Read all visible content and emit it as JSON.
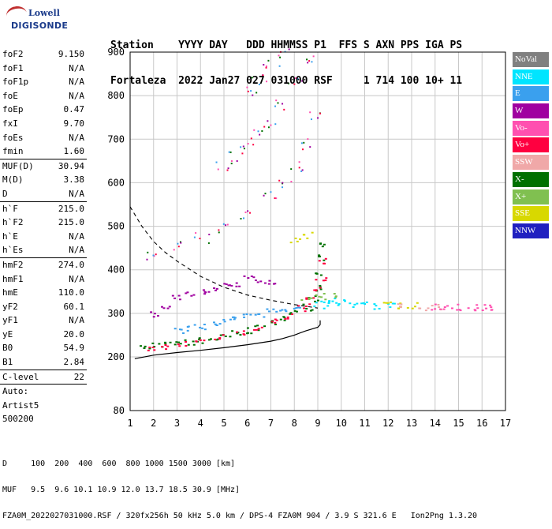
{
  "logo": {
    "line1": "Lowell",
    "line2": "DIGISONDE"
  },
  "header": {
    "line1": "Station    YYYY DAY   DDD HHMMSS P1  FFS S AXN PPS IGA PS",
    "line2": "Fortaleza  2022 Jan27 027 031000 RSF     1 714 100 10+ 11"
  },
  "params": {
    "group1": [
      {
        "k": "foF2",
        "v": "9.150"
      },
      {
        "k": "foF1",
        "v": "N/A"
      },
      {
        "k": "foF1p",
        "v": "N/A"
      },
      {
        "k": "foE",
        "v": "N/A"
      },
      {
        "k": "foEp",
        "v": "0.47"
      },
      {
        "k": "fxI",
        "v": "9.70"
      },
      {
        "k": "foEs",
        "v": "N/A"
      },
      {
        "k": "fmin",
        "v": "1.60"
      }
    ],
    "group2": [
      {
        "k": "MUF(D)",
        "v": "30.94"
      },
      {
        "k": "M(D)",
        "v": "3.38"
      },
      {
        "k": "D",
        "v": "N/A"
      }
    ],
    "group3": [
      {
        "k": "h`F",
        "v": "215.0"
      },
      {
        "k": "h`F2",
        "v": "215.0"
      },
      {
        "k": "h`E",
        "v": "N/A"
      },
      {
        "k": "h`Es",
        "v": "N/A"
      }
    ],
    "group4": [
      {
        "k": "hmF2",
        "v": "274.0"
      },
      {
        "k": "hmF1",
        "v": "N/A"
      },
      {
        "k": "hmE",
        "v": "110.0"
      },
      {
        "k": "yF2",
        "v": "60.1"
      },
      {
        "k": "yF1",
        "v": "N/A"
      },
      {
        "k": "yE",
        "v": "20.0"
      },
      {
        "k": "B0",
        "v": "54.9"
      },
      {
        "k": "B1",
        "v": "2.84"
      }
    ],
    "group5": [
      {
        "k": "C-level",
        "v": "22"
      }
    ],
    "auto": [
      "Auto:",
      "Artist5",
      "500200"
    ]
  },
  "legend": [
    {
      "label": "NoVal",
      "color": "#808080"
    },
    {
      "label": "NNE",
      "color": "#00e5ff"
    },
    {
      "label": "E",
      "color": "#3aa0ee"
    },
    {
      "label": "W",
      "color": "#a000a0"
    },
    {
      "label": "Vo-",
      "color": "#ff50b0"
    },
    {
      "label": "Vo+",
      "color": "#ff0040"
    },
    {
      "label": "SSW",
      "color": "#f0a8a8"
    },
    {
      "label": "X-",
      "color": "#007000"
    },
    {
      "label": "X+",
      "color": "#80c050"
    },
    {
      "label": "SSE",
      "color": "#d8d800"
    },
    {
      "label": "NNW",
      "color": "#2020c0"
    }
  ],
  "footer": {
    "line1": "D     100  200  400  600  800 1000 1500 3000 [km]",
    "line2": "MUF   9.5  9.6 10.1 10.9 12.0 13.7 18.5 30.9 [MHz]",
    "line3": "FZA0M_2022027031000.RSF / 320fx256h 50 kHz 5.0 km / DPS-4 FZA0M 904 / 3.9 S 321.6 E   Ion2Png 1.3.20"
  },
  "chart_data": {
    "type": "scatter",
    "title": "",
    "xlabel": "",
    "ylabel": "",
    "xlim": [
      1,
      17
    ],
    "ylim": [
      80,
      900
    ],
    "x_ticks": [
      1,
      2,
      3,
      4,
      5,
      6,
      7,
      8,
      9,
      10,
      11,
      12,
      13,
      14,
      15,
      16,
      17
    ],
    "y_ticks": [
      80,
      200,
      300,
      400,
      500,
      600,
      700,
      800,
      900
    ],
    "grid": true,
    "legend_position": "right",
    "series": [
      {
        "name": "X-",
        "color": "#007000",
        "points": [
          [
            1.6,
            222
          ],
          [
            2.0,
            226
          ],
          [
            2.5,
            228
          ],
          [
            3.0,
            232
          ],
          [
            3.5,
            236
          ],
          [
            4.0,
            240
          ],
          [
            4.5,
            244
          ],
          [
            5.0,
            250
          ],
          [
            5.5,
            256
          ],
          [
            6.0,
            262
          ],
          [
            6.5,
            270
          ],
          [
            7.0,
            278
          ],
          [
            7.5,
            288
          ],
          [
            8.0,
            300
          ],
          [
            8.5,
            315
          ],
          [
            8.8,
            335
          ],
          [
            9.0,
            360
          ],
          [
            9.1,
            390
          ],
          [
            9.2,
            430
          ],
          [
            9.25,
            460
          ]
        ]
      },
      {
        "name": "Vo+",
        "color": "#ff0040",
        "points": [
          [
            1.8,
            220
          ],
          [
            2.5,
            225
          ],
          [
            3.2,
            230
          ],
          [
            4.0,
            237
          ],
          [
            4.8,
            246
          ],
          [
            5.6,
            257
          ],
          [
            6.4,
            268
          ],
          [
            7.2,
            282
          ],
          [
            7.8,
            296
          ],
          [
            8.3,
            312
          ],
          [
            8.7,
            330
          ],
          [
            9.0,
            355
          ],
          [
            9.1,
            380
          ],
          [
            9.2,
            420
          ]
        ]
      },
      {
        "name": "E",
        "color": "#3aa0ee",
        "points": [
          [
            3.0,
            262
          ],
          [
            3.5,
            268
          ],
          [
            4.0,
            272
          ],
          [
            4.5,
            278
          ],
          [
            5.0,
            282
          ],
          [
            5.5,
            288
          ],
          [
            6.0,
            294
          ],
          [
            6.5,
            300
          ],
          [
            7.0,
            306
          ],
          [
            7.5,
            312
          ],
          [
            8.0,
            318
          ]
        ]
      },
      {
        "name": "NNE",
        "color": "#00e5ff",
        "points": [
          [
            9.0,
            320
          ],
          [
            9.3,
            325
          ],
          [
            9.6,
            330
          ],
          [
            10.0,
            325
          ],
          [
            10.5,
            322
          ],
          [
            11.0,
            320
          ],
          [
            11.5,
            318
          ],
          [
            12.0,
            318
          ]
        ]
      },
      {
        "name": "W",
        "color": "#a000a0",
        "points": [
          [
            2.0,
            300
          ],
          [
            2.5,
            320
          ],
          [
            3.0,
            340
          ],
          [
            3.5,
            345
          ],
          [
            4.0,
            350
          ],
          [
            4.5,
            355
          ],
          [
            5.0,
            365
          ],
          [
            5.5,
            370
          ],
          [
            6.0,
            380
          ],
          [
            6.5,
            375
          ],
          [
            7.0,
            370
          ]
        ]
      },
      {
        "name": "SSE",
        "color": "#d8d800",
        "points": [
          [
            12.0,
            322
          ],
          [
            12.5,
            320
          ],
          [
            13.0,
            320
          ],
          [
            8.0,
            470
          ],
          [
            8.5,
            480
          ]
        ]
      },
      {
        "name": "SSW",
        "color": "#f0a8a8",
        "points": [
          [
            12.5,
            318
          ],
          [
            13.5,
            315
          ],
          [
            14.0,
            316
          ]
        ]
      },
      {
        "name": "Vo-",
        "color": "#ff50b0",
        "points": [
          [
            14.0,
            316
          ],
          [
            14.5,
            315
          ],
          [
            15.0,
            315
          ],
          [
            15.5,
            314
          ],
          [
            16.0,
            315
          ],
          [
            16.5,
            316
          ]
        ]
      },
      {
        "name": "X+",
        "color": "#80c050",
        "points": [
          [
            8.5,
            330
          ],
          [
            9.0,
            345
          ],
          [
            9.5,
            340
          ]
        ]
      }
    ],
    "echo_traces": [
      {
        "name": "2F",
        "points": [
          [
            2.0,
            435
          ],
          [
            3.0,
            455
          ],
          [
            4.0,
            475
          ],
          [
            5.0,
            500
          ],
          [
            6.0,
            530
          ],
          [
            7.0,
            570
          ],
          [
            7.5,
            600
          ],
          [
            8.0,
            640
          ],
          [
            8.5,
            690
          ],
          [
            9.0,
            760
          ]
        ]
      },
      {
        "name": "3F",
        "points": [
          [
            5.0,
            640
          ],
          [
            5.5,
            660
          ],
          [
            6.0,
            680
          ],
          [
            6.5,
            710
          ],
          [
            7.0,
            740
          ],
          [
            7.5,
            780
          ],
          [
            8.0,
            840
          ],
          [
            8.5,
            890
          ]
        ]
      },
      {
        "name": "4F",
        "points": [
          [
            6.0,
            810
          ],
          [
            6.5,
            840
          ],
          [
            7.0,
            870
          ],
          [
            7.5,
            900
          ]
        ]
      }
    ],
    "profile_curve": [
      [
        1.2,
        196
      ],
      [
        2.0,
        204
      ],
      [
        3.0,
        210
      ],
      [
        4.0,
        215
      ],
      [
        5.0,
        221
      ],
      [
        6.0,
        228
      ],
      [
        7.0,
        236
      ],
      [
        7.5,
        242
      ],
      [
        8.0,
        250
      ],
      [
        8.5,
        260
      ],
      [
        9.0,
        268
      ],
      [
        9.1,
        274
      ],
      [
        9.1,
        284
      ]
    ],
    "muf_curve": [
      [
        1.0,
        545
      ],
      [
        1.5,
        500
      ],
      [
        2.0,
        465
      ],
      [
        2.5,
        440
      ],
      [
        3.0,
        420
      ],
      [
        4.0,
        385
      ],
      [
        5.0,
        360
      ],
      [
        6.0,
        342
      ],
      [
        7.0,
        330
      ],
      [
        8.0,
        320
      ],
      [
        9.0,
        312
      ]
    ]
  }
}
